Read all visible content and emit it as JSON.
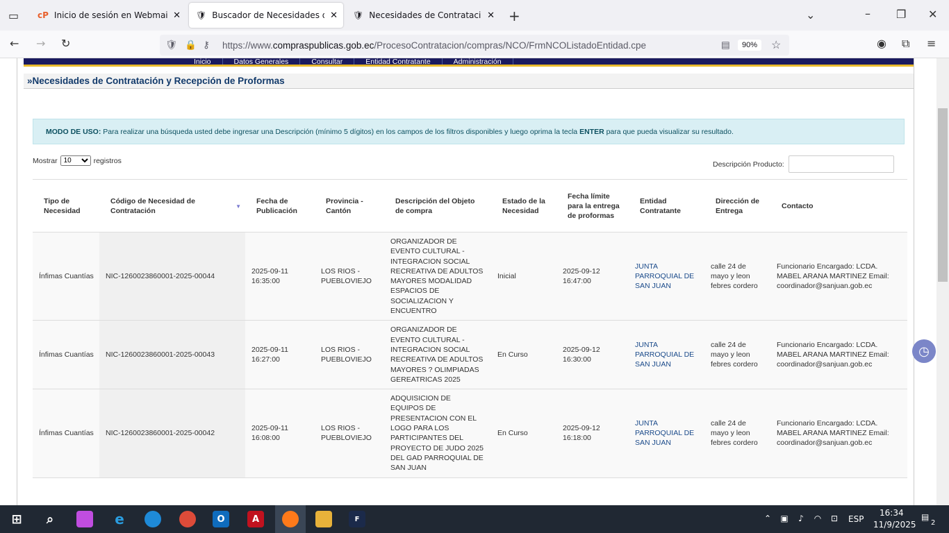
{
  "browser": {
    "tabs": [
      {
        "label": "Inicio de sesión en Webmail"
      },
      {
        "label": "Buscador de Necesidades de Co"
      },
      {
        "label": "Necesidades de Contratación y"
      }
    ],
    "url_prefix": "https://www.",
    "url_domain": "compraspublicas.gob.ec",
    "url_path": "/ProcesoContratacion/compras/NCO/FrmNCOListadoEntidad.cpe",
    "zoom": "90%"
  },
  "menu": [
    "Inicio",
    "Datos Generales",
    "Consultar",
    "Entidad Contratante",
    "Administración"
  ],
  "page_title": "»Necesidades de Contratación y Recepción de Proformas",
  "info": {
    "label": "MODO DE USO:",
    "text": " Para realizar una búsqueda usted debe ingresar una Descripción (mínimo 5 dígitos) en los campos de los filtros disponibles y luego oprima la tecla ",
    "key": "ENTER",
    "tail": " para que pueda visualizar su resultado."
  },
  "length": {
    "prefix": "Mostrar",
    "value": "10",
    "suffix": "registros"
  },
  "search": {
    "label": "Descripción Producto:",
    "value": ""
  },
  "columns": [
    "Tipo de Necesidad",
    "Código de Necesidad de Contratación",
    "Fecha de Publicación",
    "Provincia - Cantón",
    "Descripción del Objeto de compra",
    "Estado de la Necesidad",
    "Fecha límite para la entrega de proformas",
    "Entidad Contratante",
    "Dirección de Entrega",
    "Contacto"
  ],
  "rows": [
    [
      "Ínfimas Cuantías",
      "NIC-1260023860001-2025-00044",
      "2025-09-11 16:35:00",
      "LOS RIOS - PUEBLOVIEJO",
      "ORGANIZADOR DE EVENTO CULTURAL - INTEGRACION SOCIAL RECREATIVA DE ADULTOS MAYORES MODALIDAD ESPACIOS DE SOCIALIZACION Y ENCUENTRO",
      "Inicial",
      "2025-09-12 16:47:00",
      "JUNTA PARROQUIAL DE SAN JUAN",
      "calle 24 de mayo y leon febres cordero",
      "Funcionario Encargado: LCDA. MABEL ARANA MARTINEZ Email: coordinador@sanjuan.gob.ec"
    ],
    [
      "Ínfimas Cuantías",
      "NIC-1260023860001-2025-00043",
      "2025-09-11 16:27:00",
      "LOS RIOS - PUEBLOVIEJO",
      "ORGANIZADOR DE EVENTO CULTURAL - INTEGRACION SOCIAL RECREATIVA DE ADULTOS MAYORES ? OLIMPIADAS GEREATRICAS 2025",
      "En Curso",
      "2025-09-12 16:30:00",
      "JUNTA PARROQUIAL DE SAN JUAN",
      "calle 24 de mayo y leon febres cordero",
      "Funcionario Encargado: LCDA. MABEL ARANA MARTINEZ Email: coordinador@sanjuan.gob.ec"
    ],
    [
      "Ínfimas Cuantías",
      "NIC-1260023860001-2025-00042",
      "2025-09-11 16:08:00",
      "LOS RIOS - PUEBLOVIEJO",
      "ADQUISICION DE EQUIPOS DE PRESENTACION CON EL LOGO PARA LOS PARTICIPANTES DEL PROYECTO DE JUDO 2025 DEL GAD PARROQUIAL DE SAN JUAN",
      "En Curso",
      "2025-09-12 16:18:00",
      "JUNTA PARROQUIAL DE SAN JUAN",
      "calle 24 de mayo y leon febres cordero",
      "Funcionario Encargado: LCDA. MABEL ARANA MARTINEZ Email: coordinador@sanjuan.gob.ec"
    ]
  ],
  "taskbar": {
    "lang": "ESP",
    "time": "16:34",
    "date": "11/9/2025",
    "notifications": "2"
  }
}
